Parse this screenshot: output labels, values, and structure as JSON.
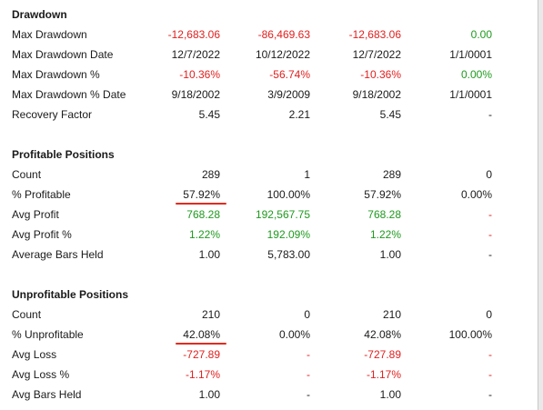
{
  "colors": {
    "negative": "#e0201f",
    "positive": "#1e9a1e",
    "neutral": "#1a1a1a",
    "annotation": "#e22a1f"
  },
  "sections": [
    {
      "title": "Drawdown",
      "rows": [
        {
          "label": "Max Drawdown",
          "values": [
            {
              "text": "-12,683.06",
              "tone": "red"
            },
            {
              "text": "-86,469.63",
              "tone": "red"
            },
            {
              "text": "-12,683.06",
              "tone": "red"
            },
            {
              "text": "0.00",
              "tone": "green"
            }
          ]
        },
        {
          "label": "Max Drawdown Date",
          "values": [
            {
              "text": "12/7/2022",
              "tone": "dark"
            },
            {
              "text": "10/12/2022",
              "tone": "dark"
            },
            {
              "text": "12/7/2022",
              "tone": "dark"
            },
            {
              "text": "1/1/0001",
              "tone": "dark"
            }
          ]
        },
        {
          "label": "Max Drawdown %",
          "values": [
            {
              "text": "-10.36%",
              "tone": "red"
            },
            {
              "text": "-56.74%",
              "tone": "red"
            },
            {
              "text": "-10.36%",
              "tone": "red"
            },
            {
              "text": "0.00%",
              "tone": "green"
            }
          ]
        },
        {
          "label": "Max Drawdown % Date",
          "values": [
            {
              "text": "9/18/2002",
              "tone": "dark"
            },
            {
              "text": "3/9/2009",
              "tone": "dark"
            },
            {
              "text": "9/18/2002",
              "tone": "dark"
            },
            {
              "text": "1/1/0001",
              "tone": "dark"
            }
          ]
        },
        {
          "label": "Recovery Factor",
          "values": [
            {
              "text": "5.45",
              "tone": "dark"
            },
            {
              "text": "2.21",
              "tone": "dark"
            },
            {
              "text": "5.45",
              "tone": "dark"
            },
            {
              "text": "-",
              "tone": "dark"
            }
          ]
        }
      ]
    },
    {
      "title": "Profitable Positions",
      "rows": [
        {
          "label": "Count",
          "values": [
            {
              "text": "289",
              "tone": "dark"
            },
            {
              "text": "1",
              "tone": "dark"
            },
            {
              "text": "289",
              "tone": "dark"
            },
            {
              "text": "0",
              "tone": "dark"
            }
          ]
        },
        {
          "label": "% Profitable",
          "underline_first": true,
          "values": [
            {
              "text": "57.92%",
              "tone": "dark"
            },
            {
              "text": "100.00%",
              "tone": "dark"
            },
            {
              "text": "57.92%",
              "tone": "dark"
            },
            {
              "text": "0.00%",
              "tone": "dark"
            }
          ]
        },
        {
          "label": "Avg Profit",
          "values": [
            {
              "text": "768.28",
              "tone": "green"
            },
            {
              "text": "192,567.75",
              "tone": "green"
            },
            {
              "text": "768.28",
              "tone": "green"
            },
            {
              "text": "-",
              "tone": "red"
            }
          ]
        },
        {
          "label": "Avg Profit %",
          "values": [
            {
              "text": "1.22%",
              "tone": "green"
            },
            {
              "text": "192.09%",
              "tone": "green"
            },
            {
              "text": "1.22%",
              "tone": "green"
            },
            {
              "text": "-",
              "tone": "red"
            }
          ]
        },
        {
          "label": "Average Bars Held",
          "values": [
            {
              "text": "1.00",
              "tone": "dark"
            },
            {
              "text": "5,783.00",
              "tone": "dark"
            },
            {
              "text": "1.00",
              "tone": "dark"
            },
            {
              "text": "-",
              "tone": "dark"
            }
          ]
        }
      ]
    },
    {
      "title": "Unprofitable Positions",
      "rows": [
        {
          "label": "Count",
          "values": [
            {
              "text": "210",
              "tone": "dark"
            },
            {
              "text": "0",
              "tone": "dark"
            },
            {
              "text": "210",
              "tone": "dark"
            },
            {
              "text": "0",
              "tone": "dark"
            }
          ]
        },
        {
          "label": "% Unprofitable",
          "underline_first": true,
          "values": [
            {
              "text": "42.08%",
              "tone": "dark"
            },
            {
              "text": "0.00%",
              "tone": "dark"
            },
            {
              "text": "42.08%",
              "tone": "dark"
            },
            {
              "text": "100.00%",
              "tone": "dark"
            }
          ]
        },
        {
          "label": "Avg Loss",
          "values": [
            {
              "text": "-727.89",
              "tone": "red"
            },
            {
              "text": "-",
              "tone": "red"
            },
            {
              "text": "-727.89",
              "tone": "red"
            },
            {
              "text": "-",
              "tone": "red"
            }
          ]
        },
        {
          "label": "Avg Loss %",
          "values": [
            {
              "text": "-1.17%",
              "tone": "red"
            },
            {
              "text": "-",
              "tone": "red"
            },
            {
              "text": "-1.17%",
              "tone": "red"
            },
            {
              "text": "-",
              "tone": "red"
            }
          ]
        },
        {
          "label": "Avg Bars Held",
          "values": [
            {
              "text": "1.00",
              "tone": "dark"
            },
            {
              "text": "-",
              "tone": "dark"
            },
            {
              "text": "1.00",
              "tone": "dark"
            },
            {
              "text": "-",
              "tone": "dark"
            }
          ]
        }
      ]
    }
  ]
}
